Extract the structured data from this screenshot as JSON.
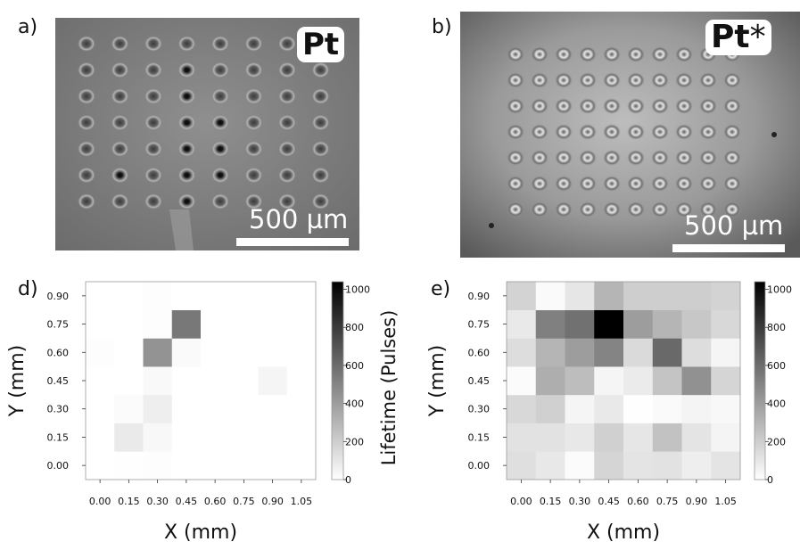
{
  "panels": {
    "a": {
      "letter": "a)",
      "material": "Pt",
      "scale_bar": "500 µm"
    },
    "b": {
      "letter": "b)",
      "material_text": "Pt",
      "material_star": "*",
      "scale_bar": "500 µm"
    },
    "d": {
      "letter": "d)"
    },
    "e": {
      "letter": "e)"
    }
  },
  "colors": {
    "colormap_low": "#ffffff",
    "colormap_high": "#000000",
    "scale_bar": "#ffffff"
  },
  "chart_data": [
    {
      "type": "heatmap",
      "panel": "d",
      "xlabel": "X (mm)",
      "ylabel": "Y (mm)",
      "colorbar_label": "Lifetime (Pulses)",
      "x": [
        0.0,
        0.15,
        0.3,
        0.45,
        0.6,
        0.75,
        0.9,
        1.05
      ],
      "y": [
        0.0,
        0.15,
        0.3,
        0.45,
        0.6,
        0.75,
        0.9
      ],
      "x_ticks": [
        "0.00",
        "0.15",
        "0.30",
        "0.45",
        "0.60",
        "0.75",
        "0.90",
        "1.05"
      ],
      "y_ticks": [
        "0.00",
        "0.15",
        "0.30",
        "0.45",
        "0.60",
        "0.75",
        "0.90"
      ],
      "colorbar_ticks": [
        0,
        200,
        400,
        600,
        800,
        1000
      ],
      "colorbar_range": [
        0,
        1040
      ],
      "values": [
        [
          0,
          5,
          8,
          0,
          0,
          0,
          0,
          0
        ],
        [
          0,
          85,
          30,
          0,
          0,
          0,
          0,
          0
        ],
        [
          0,
          15,
          70,
          0,
          0,
          0,
          0,
          0
        ],
        [
          0,
          0,
          25,
          0,
          0,
          0,
          40,
          0
        ],
        [
          10,
          0,
          440,
          20,
          0,
          0,
          0,
          0
        ],
        [
          0,
          0,
          10,
          550,
          0,
          0,
          0,
          0
        ],
        [
          0,
          0,
          10,
          0,
          0,
          0,
          0,
          0
        ]
      ]
    },
    {
      "type": "heatmap",
      "panel": "e",
      "xlabel": "X (mm)",
      "ylabel": "Y (mm)",
      "x": [
        0.0,
        0.15,
        0.3,
        0.45,
        0.6,
        0.75,
        0.9,
        1.05
      ],
      "y": [
        0.0,
        0.15,
        0.3,
        0.45,
        0.6,
        0.75,
        0.9
      ],
      "x_ticks": [
        "0.00",
        "0.15",
        "0.30",
        "0.45",
        "0.60",
        "0.75",
        "0.90",
        "1.05"
      ],
      "y_ticks": [
        "0.00",
        "0.15",
        "0.30",
        "0.45",
        "0.60",
        "0.75",
        "0.90"
      ],
      "colorbar_ticks": [
        0,
        200,
        400,
        600,
        800,
        1000
      ],
      "colorbar_range": [
        0,
        1040
      ],
      "values": [
        [
          130,
          95,
          15,
          170,
          110,
          120,
          70,
          110
        ],
        [
          120,
          120,
          95,
          190,
          100,
          250,
          110,
          45
        ],
        [
          160,
          190,
          40,
          90,
          5,
          20,
          45,
          30
        ],
        [
          15,
          330,
          270,
          40,
          80,
          240,
          450,
          170
        ],
        [
          140,
          300,
          400,
          500,
          150,
          610,
          140,
          40
        ],
        [
          90,
          520,
          580,
          1040,
          400,
          300,
          230,
          160
        ],
        [
          180,
          20,
          100,
          300,
          200,
          200,
          200,
          180
        ]
      ]
    }
  ]
}
